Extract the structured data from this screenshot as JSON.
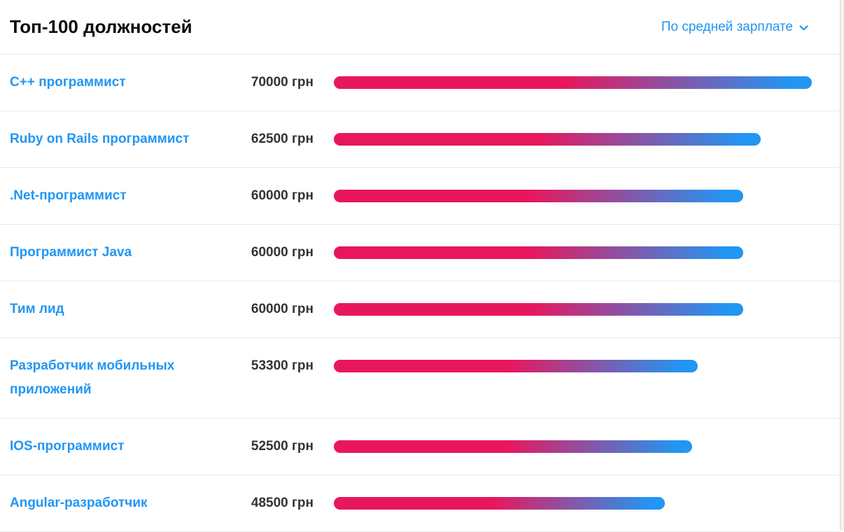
{
  "header": {
    "title": "Топ-100 должностей",
    "sort_control": {
      "label": "По средней зарплате",
      "icon": "chevron-down"
    }
  },
  "colors": {
    "link_blue": "#2196f3",
    "title_text": "#0b0b0b",
    "value_text": "#333333",
    "bar_gradient_start": "#e8175d",
    "bar_gradient_end": "#2196f3",
    "row_separator": "#e9e9eb",
    "scrollbar_track": "#f1f1f2"
  },
  "chart_data": {
    "type": "bar",
    "orientation": "horizontal",
    "title": "Топ-100 должностей",
    "sort_by": "По средней зарплате",
    "categories": [
      "C++ программист",
      "Ruby on Rails программист",
      ".Net-программист",
      "Программист Java",
      "Тим лид",
      "Разработчик мобильных приложений",
      "IOS-программист",
      "Angular-разработчик"
    ],
    "values": [
      70000,
      62500,
      60000,
      60000,
      60000,
      53300,
      52500,
      48500
    ],
    "value_labels": [
      "70000 грн",
      "62500 грн",
      "60000 грн",
      "60000 грн",
      "60000 грн",
      "53300 грн",
      "52500 грн",
      "48500 грн"
    ],
    "unit": "грн",
    "xlim": [
      0,
      70000
    ],
    "grid": false,
    "legend": false,
    "bar_style": "pill-shaped gradient, crimson-pink left fading to azure-blue right, gradient spans each bar's own width"
  }
}
